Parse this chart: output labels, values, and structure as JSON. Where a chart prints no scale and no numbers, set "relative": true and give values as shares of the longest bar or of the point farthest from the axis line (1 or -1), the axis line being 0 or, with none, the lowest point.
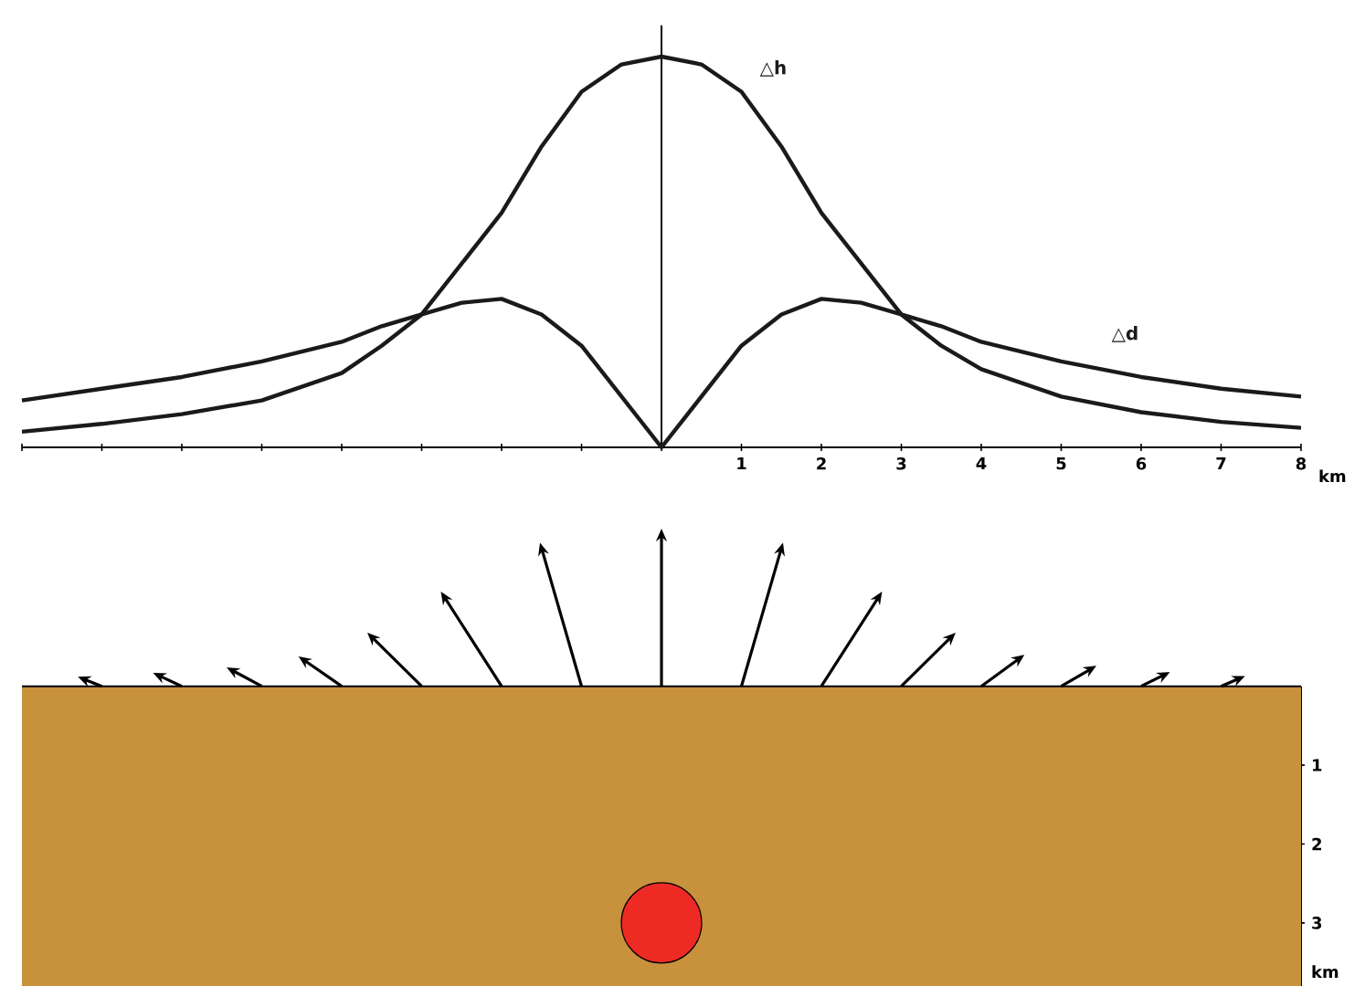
{
  "chart_data": [
    {
      "type": "line",
      "relative": true,
      "xlabel": "km",
      "x": [
        -8,
        -7,
        -6,
        -5,
        -4,
        -3.5,
        -3,
        -2.5,
        -2,
        -1.5,
        -1,
        -0.5,
        0,
        0.5,
        1,
        1.5,
        2,
        2.5,
        3,
        3.5,
        4,
        5,
        6,
        7,
        8
      ],
      "xlim": [
        -8,
        8
      ],
      "xticks": [
        {
          "value": -8,
          "label": null
        },
        {
          "value": -7,
          "label": null
        },
        {
          "value": -6,
          "label": null
        },
        {
          "value": -5,
          "label": null
        },
        {
          "value": -4,
          "label": null
        },
        {
          "value": -3,
          "label": null
        },
        {
          "value": -2,
          "label": null
        },
        {
          "value": -1,
          "label": null
        },
        {
          "value": 0,
          "label": null
        },
        1,
        2,
        3,
        4,
        5,
        6,
        7,
        8
      ],
      "series": [
        {
          "name": "△h",
          "color": "#1a1a1a",
          "values": [
            0.04,
            0.06,
            0.085,
            0.12,
            0.19,
            0.26,
            0.34,
            0.47,
            0.6,
            0.77,
            0.91,
            0.98,
            1,
            0.98,
            0.91,
            0.77,
            0.6,
            0.47,
            0.34,
            0.26,
            0.2,
            0.13,
            0.09,
            0.065,
            0.05
          ]
        },
        {
          "name": "△d",
          "color": "#1a1a1a",
          "values": [
            0.12,
            0.15,
            0.18,
            0.22,
            0.27,
            0.31,
            0.34,
            0.37,
            0.38,
            0.34,
            0.26,
            0.13,
            0,
            0.13,
            0.26,
            0.34,
            0.38,
            0.37,
            0.34,
            0.31,
            0.27,
            0.22,
            0.18,
            0.15,
            0.13
          ]
        }
      ],
      "line_style": "solid"
    },
    {
      "type": "scatter",
      "ylabel": "km",
      "x": [
        0
      ],
      "values": [
        3
      ],
      "color": "#ee2a24",
      "xlim": [
        -8,
        8
      ],
      "ylim": [
        3.8,
        0
      ],
      "yticks": [
        1,
        2,
        3
      ],
      "tick_labels": "y",
      "bands": [
        {
          "axis": "y",
          "from": 0,
          "to": 3.8,
          "color": "#c8913c"
        }
      ]
    }
  ]
}
